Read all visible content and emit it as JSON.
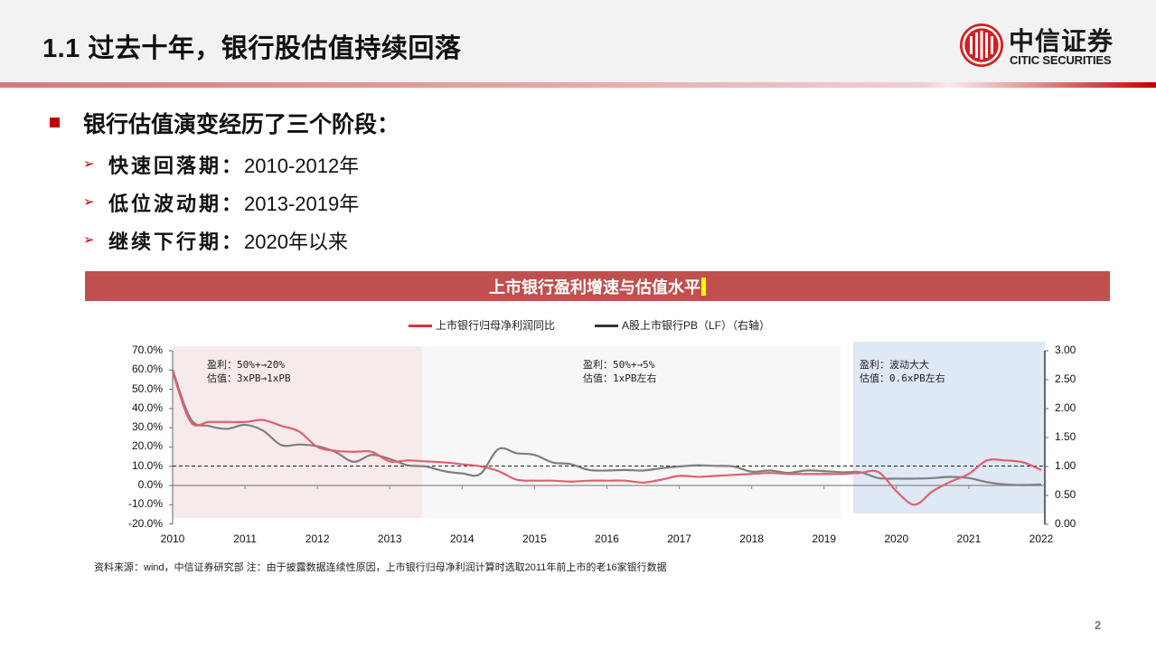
{
  "header": {
    "title": "1.1 过去十年，银行股估值持续回落",
    "logo_cn": "中信证券",
    "logo_en": "CITIC SECURITIES"
  },
  "content": {
    "main_bullet": "银行估值演变经历了三个阶段：",
    "sub_bullets": [
      {
        "label": "快速回落期：",
        "value": "2010-2012年"
      },
      {
        "label": "低位波动期：",
        "value": "2013-2019年"
      },
      {
        "label": "继续下行期：",
        "value": "2020年以来"
      }
    ]
  },
  "chart_data": {
    "type": "line",
    "title": "上市银行盈利增速与估值水平",
    "legend": [
      "上市银行归母净利润同比",
      "A股上市银行PB（LF）（右轴）"
    ],
    "legend_position": "top",
    "x_ticks": [
      "2010",
      "2011",
      "2012",
      "2013",
      "2014",
      "2015",
      "2016",
      "2017",
      "2018",
      "2019",
      "2020",
      "2021",
      "2022"
    ],
    "y_left_ticks": [
      "70.0%",
      "60.0%",
      "50.0%",
      "40.0%",
      "30.0%",
      "20.0%",
      "10.0%",
      "0.0%",
      "-10.0%",
      "-20.0%"
    ],
    "y_right_ticks": [
      "3.00",
      "2.50",
      "2.00",
      "1.50",
      "1.00",
      "0.50",
      "0.00"
    ],
    "ylim_left": [
      -20,
      70
    ],
    "ylim_right": [
      0,
      3
    ],
    "reference_line": {
      "axis": "right",
      "value": 1.0,
      "style": "dashed"
    },
    "regions": [
      {
        "from": 2010.0,
        "to": 2013.45,
        "color": "#f6eaea",
        "note": [
          "盈利：50%+→20%",
          "估值：3xPB→1xPB"
        ]
      },
      {
        "from": 2013.45,
        "to": 2019.2,
        "color": "#f7f7f7",
        "note": [
          "盈利：50%+→5%",
          "估值：1xPB左右"
        ]
      },
      {
        "from": 2019.4,
        "to": 2022.05,
        "color": "#dfe8f5",
        "note": [
          "盈利：波动大大",
          "估值：0.6xPB左右"
        ]
      }
    ],
    "series": [
      {
        "name": "上市银行归母净利润同比",
        "axis": "left",
        "color": "#e06070",
        "x": [
          2010.0,
          2010.25,
          2010.5,
          2010.75,
          2011.0,
          2011.25,
          2011.5,
          2011.75,
          2012.0,
          2012.25,
          2012.5,
          2012.75,
          2013.0,
          2013.25,
          2013.5,
          2013.75,
          2014.0,
          2014.25,
          2014.5,
          2014.75,
          2015.0,
          2015.25,
          2015.5,
          2015.75,
          2016.0,
          2016.25,
          2016.5,
          2016.75,
          2017.0,
          2017.25,
          2017.5,
          2017.75,
          2018.0,
          2018.25,
          2018.5,
          2018.75,
          2019.0,
          2019.25,
          2019.5,
          2019.75,
          2020.0,
          2020.25,
          2020.5,
          2020.75,
          2021.0,
          2021.25,
          2021.5,
          2021.75,
          2022.0
        ],
        "values": [
          59,
          33,
          33,
          33,
          33,
          34,
          31,
          28,
          20,
          18,
          17.5,
          17.5,
          12.5,
          13,
          12.5,
          12,
          11,
          10,
          7.5,
          3,
          2.5,
          2.5,
          2,
          2.5,
          2.5,
          2.5,
          1.5,
          3,
          5,
          4.5,
          5,
          5.5,
          6,
          6.5,
          6,
          6,
          6,
          6,
          6.5,
          7,
          -3,
          -10,
          -3,
          2,
          6,
          13,
          13,
          12,
          8
        ]
      },
      {
        "name": "A股上市银行PB（LF）（右轴）",
        "axis": "right",
        "color": "#7f7f7f",
        "x": [
          2010.0,
          2010.25,
          2010.5,
          2010.75,
          2011.0,
          2011.25,
          2011.5,
          2011.75,
          2012.0,
          2012.25,
          2012.5,
          2012.75,
          2013.0,
          2013.25,
          2013.5,
          2013.75,
          2014.0,
          2014.25,
          2014.5,
          2014.75,
          2015.0,
          2015.25,
          2015.5,
          2015.75,
          2016.0,
          2016.25,
          2016.5,
          2016.75,
          2017.0,
          2017.25,
          2017.5,
          2017.75,
          2018.0,
          2018.25,
          2018.5,
          2018.75,
          2019.0,
          2019.25,
          2019.5,
          2019.75,
          2020.0,
          2020.25,
          2020.5,
          2020.75,
          2021.0,
          2021.25,
          2021.5,
          2021.75,
          2022.0
        ],
        "values": [
          2.67,
          1.82,
          1.7,
          1.65,
          1.72,
          1.62,
          1.37,
          1.38,
          1.35,
          1.25,
          1.08,
          1.2,
          1.13,
          1.02,
          1.0,
          0.92,
          0.88,
          0.87,
          1.3,
          1.23,
          1.2,
          1.07,
          1.04,
          0.94,
          0.93,
          0.94,
          0.93,
          0.97,
          1.0,
          1.02,
          1.01,
          1.0,
          0.91,
          0.93,
          0.89,
          0.93,
          0.92,
          0.9,
          0.9,
          0.8,
          0.79,
          0.79,
          0.8,
          0.82,
          0.8,
          0.73,
          0.69,
          0.68,
          0.69
        ]
      }
    ]
  },
  "footer": {
    "source": "资料来源：wind，中信证券研究部  注：由于披露数据连续性原因，上市银行归母净利润计算时选取2011年前上市的老16家银行数据",
    "page_number": "2"
  }
}
